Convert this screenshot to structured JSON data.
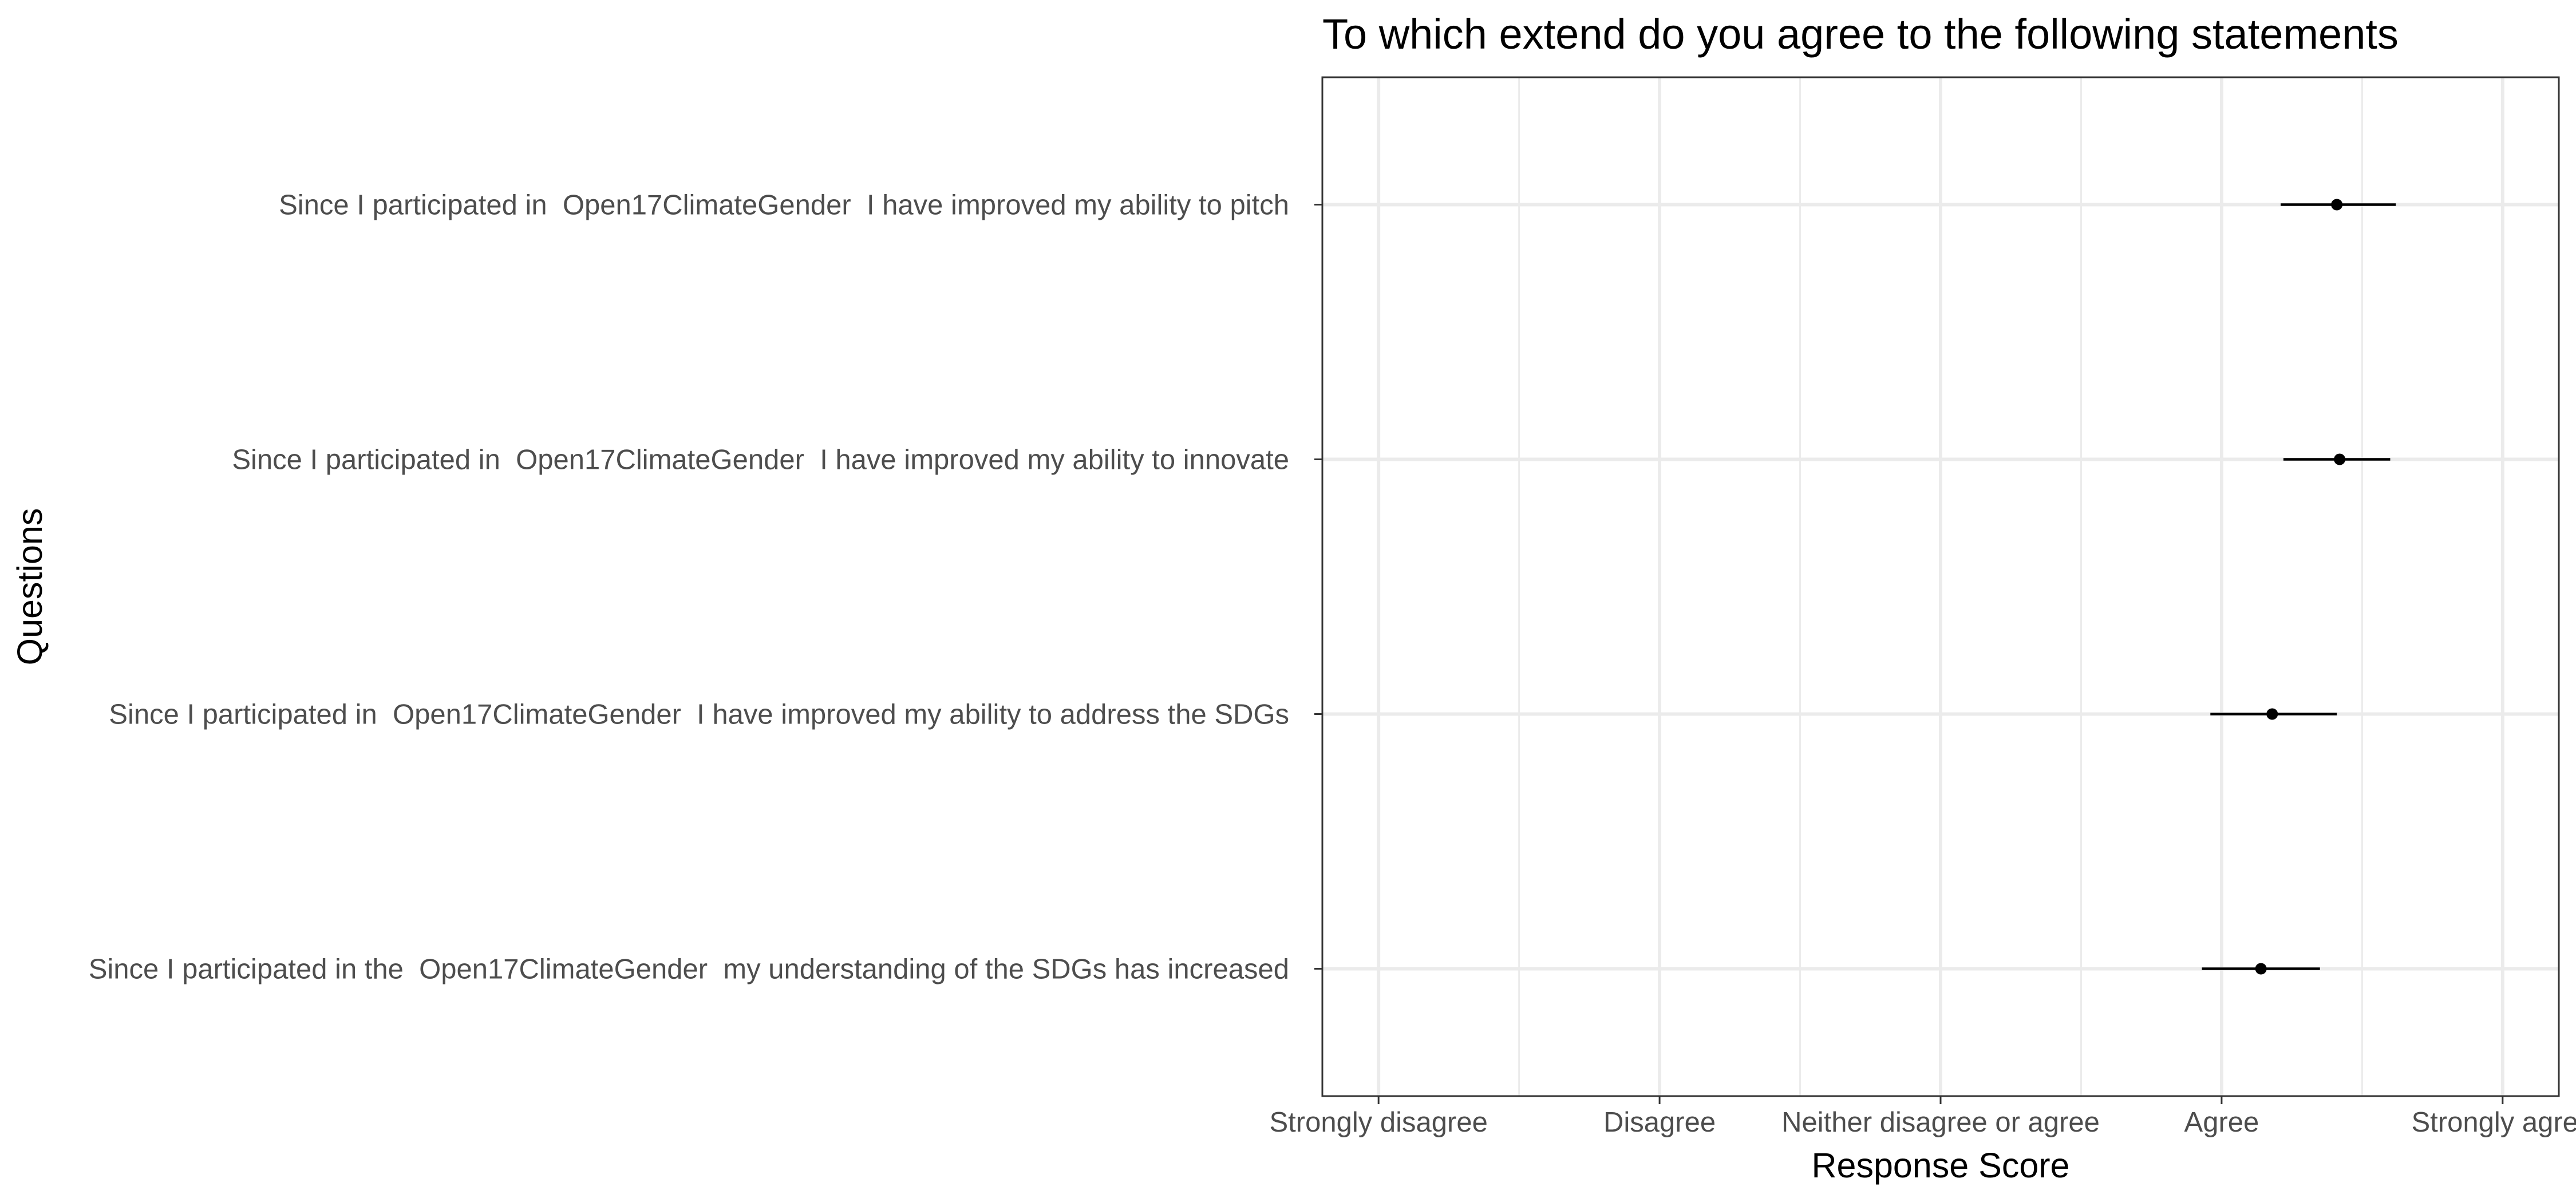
{
  "chart_data": {
    "type": "pointrange",
    "title": "To which extend do you agree to the following statements",
    "xlabel": "Response Score",
    "ylabel": "Questions",
    "x_ticks": [
      {
        "value": 1,
        "label": "Strongly disagree"
      },
      {
        "value": 2,
        "label": "Disagree"
      },
      {
        "value": 3,
        "label": "Neither disagree or agree"
      },
      {
        "value": 4,
        "label": "Agree"
      },
      {
        "value": 5,
        "label": "Strongly agree"
      }
    ],
    "xlim": [
      0.8,
      5.2
    ],
    "grid": true,
    "categories": [
      "Since I participated in  Open17ClimateGender  I have improved my ability to pitch",
      "Since I participated in  Open17ClimateGender  I have improved my ability to innovate",
      "Since I participated in  Open17ClimateGender  I have improved my ability to address the SDGs",
      "Since I participated in the  Open17ClimateGender  my understanding of the SDGs has increased"
    ],
    "points": [
      {
        "mean": 4.41,
        "low": 4.21,
        "high": 4.62
      },
      {
        "mean": 4.42,
        "low": 4.22,
        "high": 4.6
      },
      {
        "mean": 4.18,
        "low": 3.96,
        "high": 4.41
      },
      {
        "mean": 4.14,
        "low": 3.93,
        "high": 4.35
      }
    ],
    "colors": {
      "panel_border": "#333333",
      "grid": "#ebebeb",
      "point": "#000000",
      "tick_text": "#4d4d4d"
    }
  }
}
